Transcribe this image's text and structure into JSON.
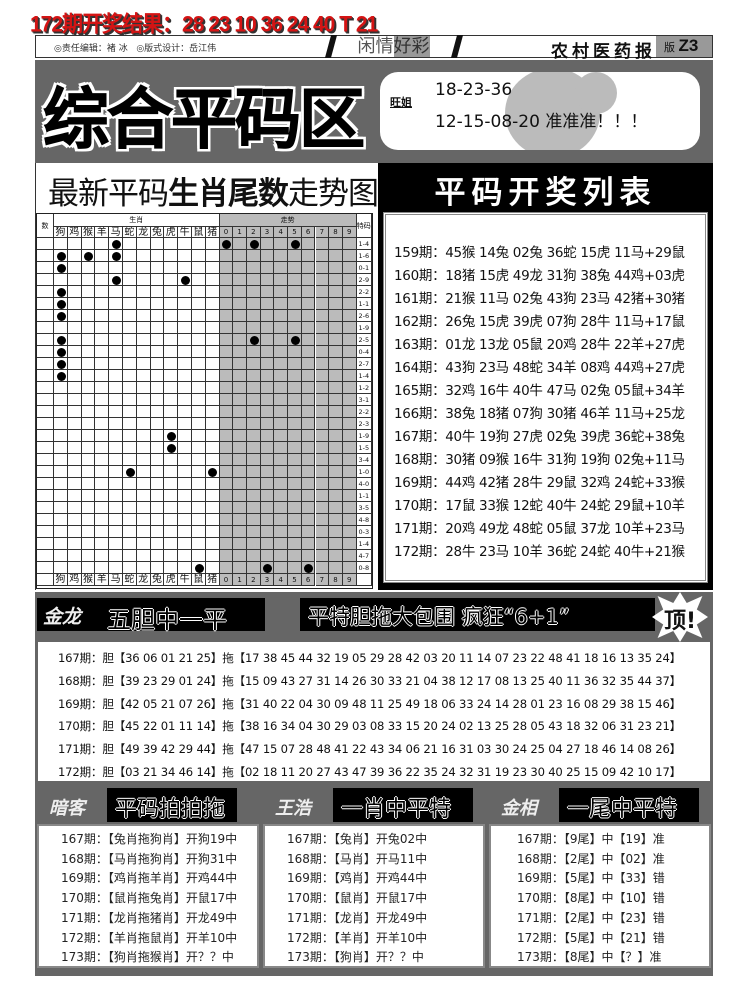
{
  "top_result": "172期开奖结果：28 23 10 36 24 40 T 21",
  "header": {
    "editor": "◎责任编辑：褚 冰",
    "designer": "◎版式设计：岳江伟",
    "column_a": "闲情",
    "column_b": "好彩",
    "paper_name": "农村医药报",
    "page_prefix": "版",
    "page_no": "Z3"
  },
  "banner": {
    "title": "综合平码区",
    "tipster": "旺姐",
    "line1": "18-23-36",
    "line2": "12-15-08-20 准准准！！！"
  },
  "trend": {
    "title_plain": "最新平码",
    "title_bold": "生肖尾数",
    "title_end": "走势图",
    "col_num_label": "数",
    "zodiac_group_label": "生肖",
    "trend_group_label": "走势",
    "special_label": "特码",
    "zodiacs": [
      "狗",
      "鸡",
      "猴",
      "羊",
      "马",
      "蛇",
      "龙",
      "兔",
      "虎",
      "牛",
      "鼠",
      "猪"
    ],
    "digits": [
      "0",
      "1",
      "2",
      "3",
      "4",
      "5",
      "6",
      "7",
      "8",
      "9"
    ],
    "rows": [
      {
        "special": "1-4",
        "zodiac": [
          4
        ],
        "digits": [
          0,
          2,
          5
        ]
      },
      {
        "special": "1-6",
        "zodiac": [
          0,
          2,
          4
        ],
        "digits": []
      },
      {
        "special": "0-1",
        "zodiac": [
          0
        ],
        "digits": []
      },
      {
        "special": "2-9",
        "zodiac": [
          4,
          9
        ],
        "digits": []
      },
      {
        "special": "2-2",
        "zodiac": [
          0
        ],
        "digits": []
      },
      {
        "special": "1-1",
        "zodiac": [
          0
        ],
        "digits": []
      },
      {
        "special": "2-6",
        "zodiac": [
          0
        ],
        "digits": []
      },
      {
        "special": "1-9",
        "zodiac": [],
        "digits": []
      },
      {
        "special": "2-5",
        "zodiac": [
          0
        ],
        "digits": [
          2,
          5
        ]
      },
      {
        "special": "0-4",
        "zodiac": [
          0
        ],
        "digits": []
      },
      {
        "special": "2-7",
        "zodiac": [
          0
        ],
        "digits": []
      },
      {
        "special": "1-4",
        "zodiac": [
          0
        ],
        "digits": []
      },
      {
        "special": "1-2",
        "zodiac": [],
        "digits": []
      },
      {
        "special": "3-1",
        "zodiac": [],
        "digits": []
      },
      {
        "special": "2-2",
        "zodiac": [],
        "digits": []
      },
      {
        "special": "2-3",
        "zodiac": [],
        "digits": []
      },
      {
        "special": "1-9",
        "zodiac": [
          8
        ],
        "digits": []
      },
      {
        "special": "1-5",
        "zodiac": [
          8
        ],
        "digits": []
      },
      {
        "special": "3-4",
        "zodiac": [],
        "digits": []
      },
      {
        "special": "1-0",
        "zodiac": [
          5,
          11
        ],
        "digits": []
      },
      {
        "special": "4-0",
        "zodiac": [],
        "digits": []
      },
      {
        "special": "1-1",
        "zodiac": [],
        "digits": []
      },
      {
        "special": "3-5",
        "zodiac": [],
        "digits": []
      },
      {
        "special": "4-8",
        "zodiac": [],
        "digits": []
      },
      {
        "special": "0-3",
        "zodiac": [],
        "digits": []
      },
      {
        "special": "1-4",
        "zodiac": [],
        "digits": []
      },
      {
        "special": "4-7",
        "zodiac": [],
        "digits": []
      },
      {
        "special": "0-8",
        "zodiac": [
          10
        ],
        "digits": [
          3,
          6
        ]
      }
    ]
  },
  "draw_list": {
    "title": "平码开奖列表",
    "rows": [
      "159期：45猴 14兔 02兔 36蛇 15虎 11马+29鼠",
      "160期：18猪 15虎 49龙 31狗 38兔 44鸡+03虎",
      "161期：21猴 11马 02兔 43狗 23马 42猪+30猪",
      "162期：26兔 15虎 39虎 07狗 28牛 11马+17鼠",
      "163期：01龙 13龙 05鼠 20鸡 28牛 22羊+27虎",
      "164期：43狗 23马 48蛇 34羊 08鸡 44鸡+27虎",
      "165期：32鸡 16牛 40牛 47马 02兔 05鼠+34羊",
      "166期：38兔 18猪 07狗 30猪 46羊 11马+25龙",
      "167期：40牛 19狗 27虎 02兔 39虎 36蛇+38兔",
      "168期：30猪 09猴 16牛 31狗 19狗 02兔+11马",
      "169期：44鸡 42猪 28牛 29鼠 32鸡 24蛇+33猴",
      "170期：17鼠 33猴 12蛇 40牛 24蛇 29鼠+10羊",
      "171期：20鸡 49龙 48蛇 05鼠 37龙 10羊+23马",
      "172期：28牛 23马 10羊 36蛇 24蛇 40牛+21猴"
    ]
  },
  "five_gall": {
    "author": "金龙",
    "title": "五胆中一平",
    "slogan": "平特胆拖大包围 疯狂“6+1”",
    "badge": "顶!",
    "rows": [
      "167期：胆【36 06 01 21 25】拖【17 38 45 44 32 19 05 29 28 42 03 20 11 14 07 23 22 48 41 18 16 13 35 24】",
      "168期：胆【39 23 29 01 24】拖【15 09 43 27 31 14 26 30 33 21 04 38 12 17 08 13 25 40 11 36 32 35 44 37】",
      "169期：胆【42 05 21 07 26】拖【31 40 22 04 30 09 48 11 25 49 18 06 33 24 14 28 01 23 16 08 29 38 15 46】",
      "170期：胆【45 22 01 11 14】拖【38 16 34 04 30 29 03 08 33 15 20 24 02 13 25 28 05 43 18 32 06 31 23 21】",
      "171期：胆【49 39 42 29 44】拖【47 15 07 28 48 41 22 43 34 06 21 16 31 03 30 24 25 04 27 18 46 14 08 26】",
      "172期：胆【03 21 34 46 14】拖【02 18 11 20 27 43 47 39 36 22 35 24 32 31 19 23 30 40 25 15 09 42 10 17】"
    ]
  },
  "bottom": [
    {
      "author": "暗客",
      "title": "平码拍拍拖",
      "rows": [
        "167期：【兔肖拖狗肖】开狗19中",
        "168期：【马肖拖狗肖】开狗31中",
        "169期：【鸡肖拖羊肖】开鸡44中",
        "170期：【鼠肖拖兔肖】开鼠17中",
        "171期：【龙肖拖猪肖】开龙49中",
        "172期：【羊肖拖鼠肖】开羊10中",
        "173期：【狗肖拖猴肖】开？？中"
      ]
    },
    {
      "author": "王浩",
      "title": "一肖中平特",
      "rows": [
        "167期：【兔肖】开兔02中",
        "168期：【马肖】开马11中",
        "169期：【鸡肖】开鸡44中",
        "170期：【鼠肖】开鼠17中",
        "171期：【龙肖】开龙49中",
        "172期：【羊肖】开羊10中",
        "173期：【狗肖】开？？中"
      ]
    },
    {
      "author": "金相",
      "title": "一尾中平特",
      "rows": [
        "167期：【9尾】中【19】准",
        "168期：【2尾】中【02】准",
        "169期：【5尾】中【33】错",
        "170期：【8尾】中【10】错",
        "171期：【2尾】中【23】错",
        "172期：【5尾】中【21】错",
        "173期：【8尾】中【？】准"
      ]
    }
  ],
  "colors": {
    "result_red": "#d41414",
    "panel_gray": "#666666",
    "grid_shade": "#bbbbbb"
  }
}
